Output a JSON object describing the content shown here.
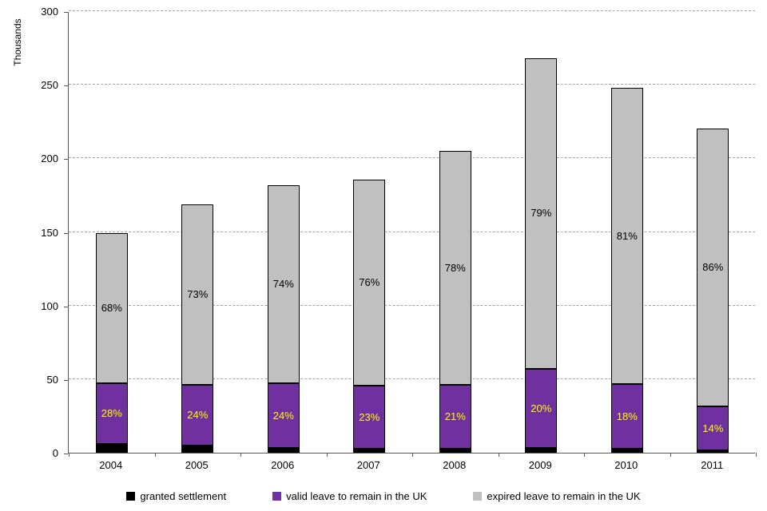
{
  "chart_data": {
    "type": "bar",
    "stacked": true,
    "title": "",
    "ylabel": "Thousands",
    "xlabel": "",
    "ylim": [
      0,
      300
    ],
    "yticks": [
      0,
      50,
      100,
      150,
      200,
      250,
      300
    ],
    "grid": "horizontal-dashed",
    "legend_position": "bottom",
    "categories": [
      "2004",
      "2005",
      "2006",
      "2007",
      "2008",
      "2009",
      "2010",
      "2011"
    ],
    "series": [
      {
        "name": "granted settlement",
        "color": "#000000",
        "values": [
          6,
          5,
          3,
          2.5,
          2.5,
          3,
          2.5,
          1.5
        ],
        "labels": [
          "",
          "",
          "",
          "",
          "",
          "",
          "",
          ""
        ]
      },
      {
        "name": "valid leave to remain in the UK",
        "color": "#7030A0",
        "label_color": "#FFFF00",
        "values": [
          41,
          41,
          44,
          43,
          43.5,
          54,
          44,
          30
        ],
        "labels": [
          "28%",
          "24%",
          "24%",
          "23%",
          "21%",
          "20%",
          "18%",
          "14%"
        ]
      },
      {
        "name": "expired leave to remain in the UK",
        "color": "#C0C0C0",
        "label_color": "#000000",
        "values": [
          102,
          123,
          135,
          140,
          159,
          211,
          201.5,
          188.5
        ],
        "labels": [
          "68%",
          "73%",
          "74%",
          "76%",
          "78%",
          "79%",
          "81%",
          "86%"
        ]
      }
    ],
    "totals": [
      149,
      169,
      182,
      185.5,
      205,
      268,
      248,
      220
    ]
  }
}
